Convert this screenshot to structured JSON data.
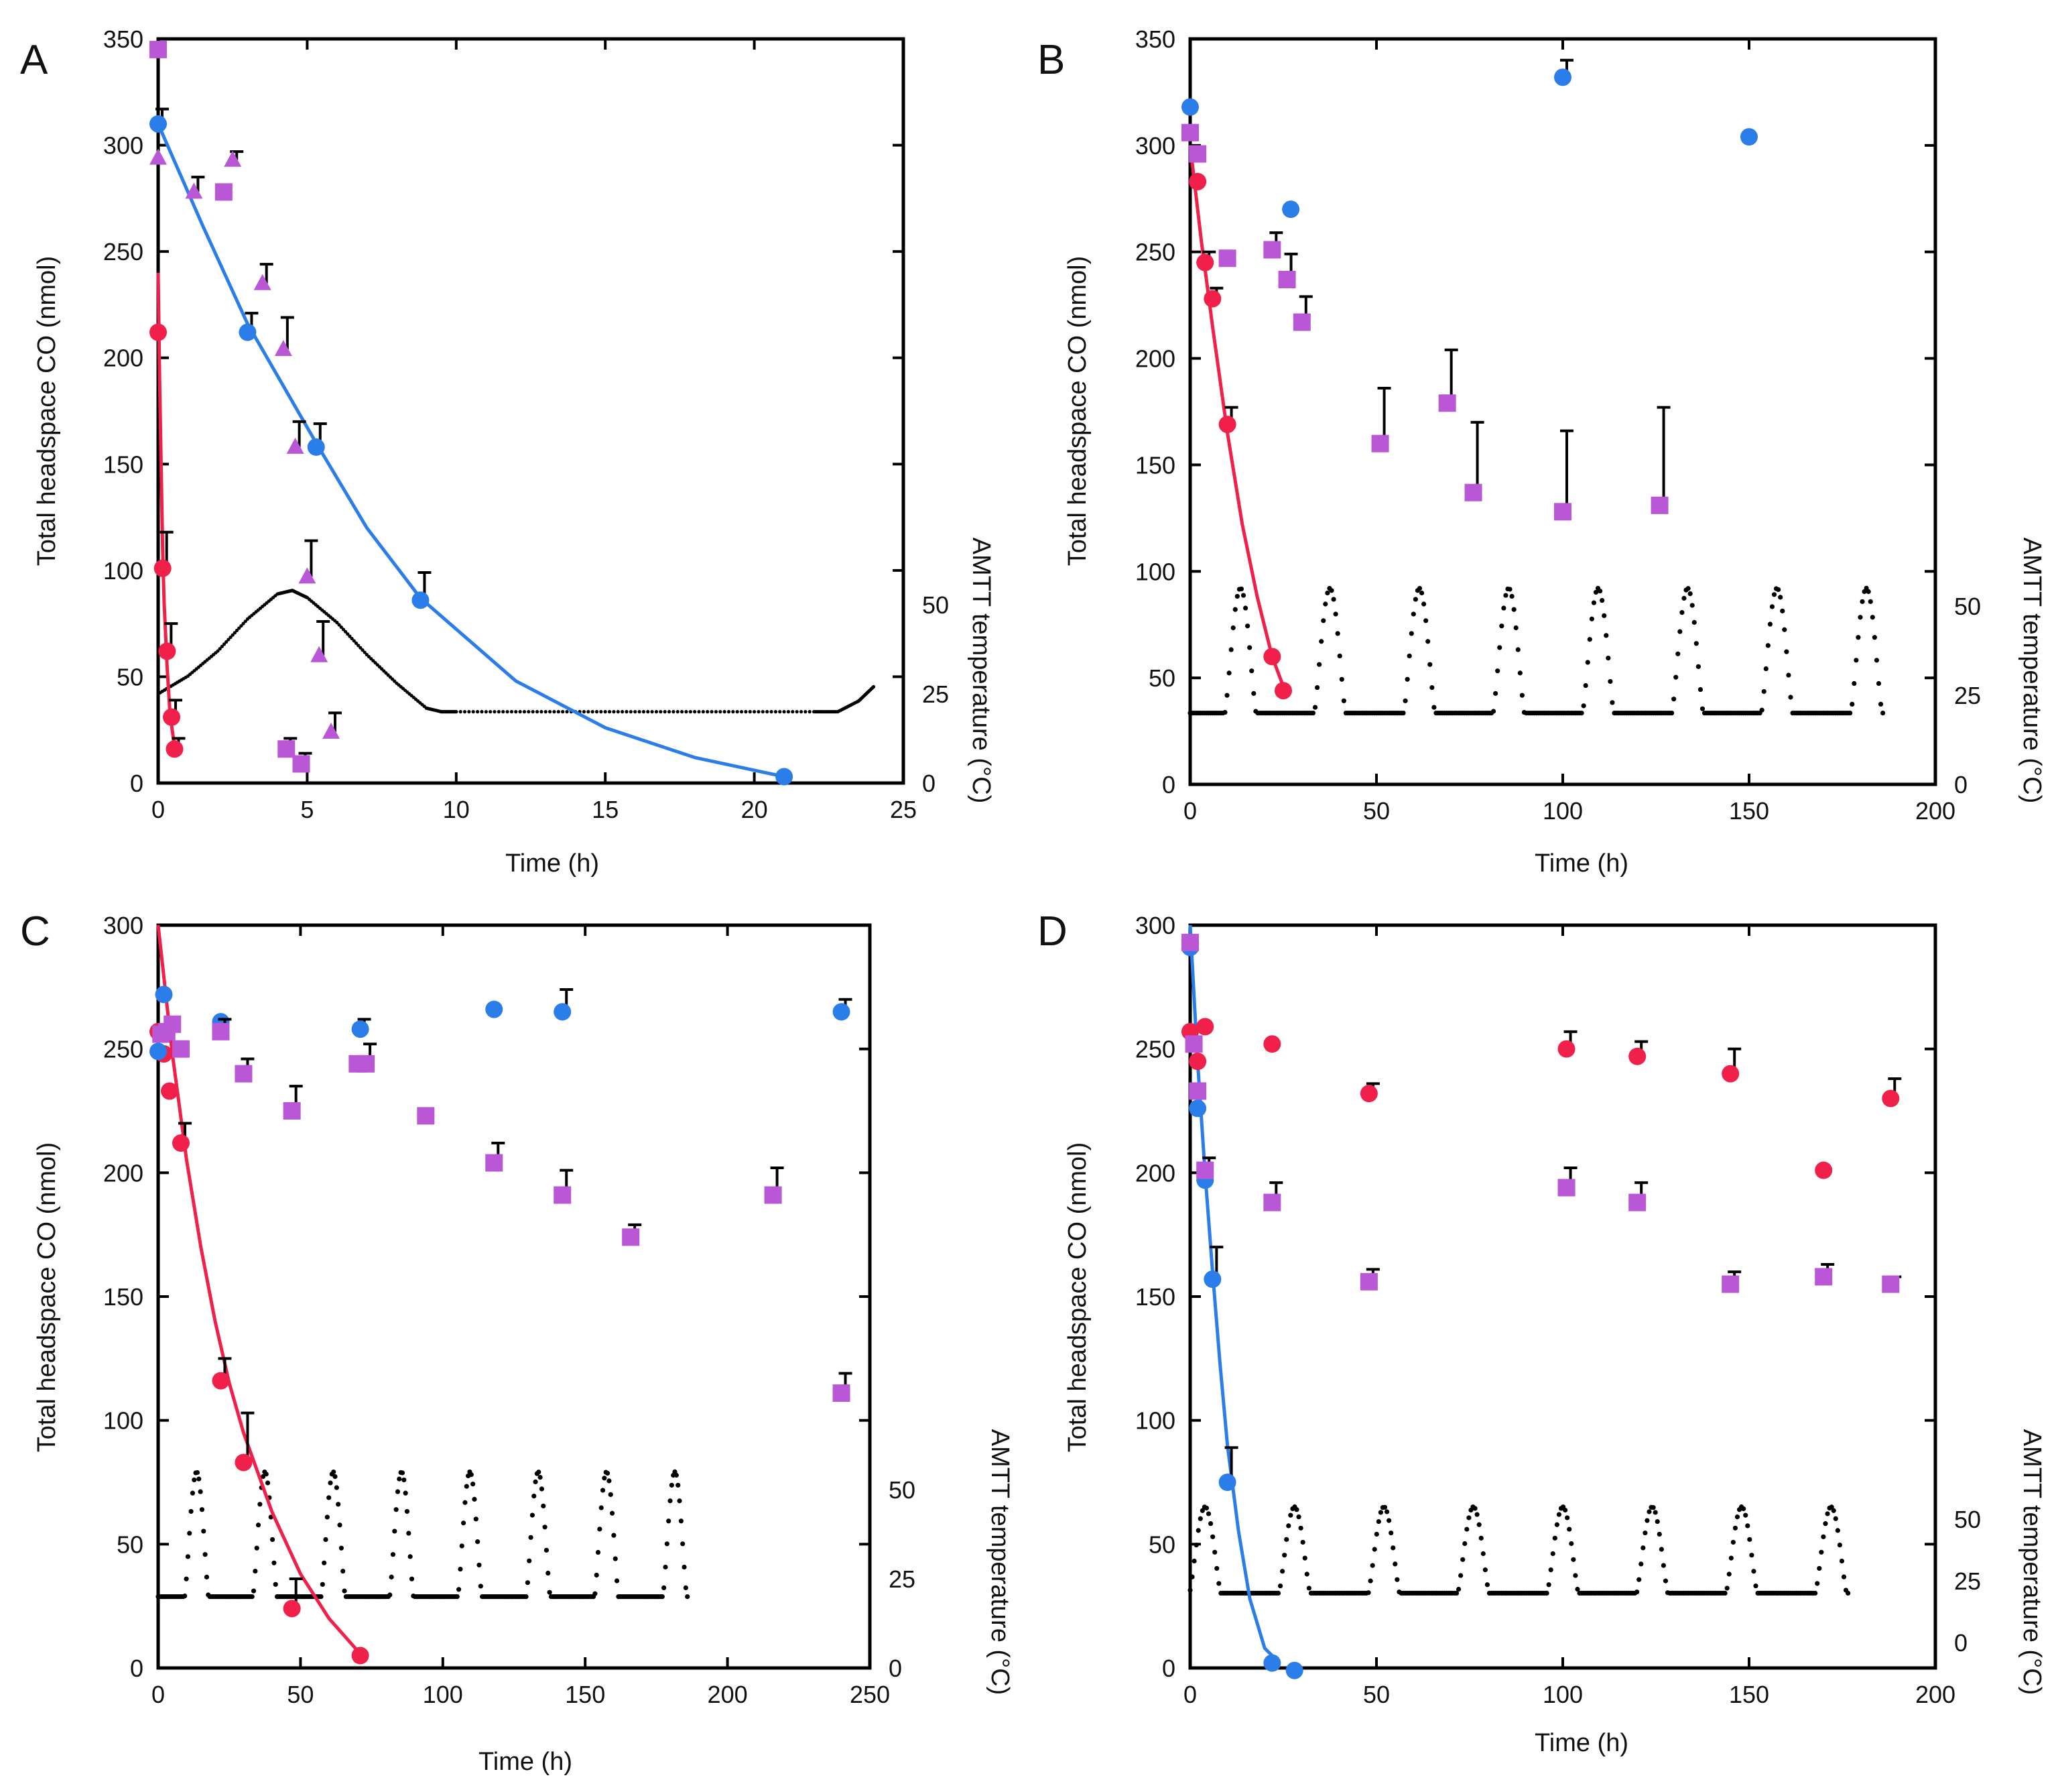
{
  "chart_data": [
    {
      "type": "scatter",
      "panel": "A",
      "xlabel": "Time (h)",
      "ylabel": "Total headspace CO (nmol)",
      "y2label": "AMTT temperature (°C)",
      "xlim": [
        0,
        25
      ],
      "ylim": [
        0,
        350
      ],
      "xticks": [
        0,
        5,
        10,
        15,
        20,
        25
      ],
      "yticks": [
        0,
        50,
        100,
        150,
        200,
        250,
        300,
        350
      ],
      "y2ticks": [
        0,
        25,
        50
      ],
      "series": [
        {
          "name": "red",
          "marker": "circle",
          "color": "#f0204a",
          "x": [
            0,
            0.15,
            0.3,
            0.45,
            0.55
          ],
          "y": [
            212,
            101,
            62,
            31,
            16
          ],
          "err": [
            0,
            17,
            13,
            8,
            5
          ]
        },
        {
          "name": "blue",
          "marker": "circle",
          "color": "#2b7de9",
          "x": [
            0,
            3,
            5.3,
            8.8,
            21
          ],
          "y": [
            310,
            212,
            158,
            86,
            3
          ],
          "err": [
            7,
            9,
            11,
            13,
            0
          ]
        },
        {
          "name": "purple squares",
          "marker": "square",
          "color": "#b957d6",
          "x": [
            0,
            2.2,
            4.3,
            4.8
          ],
          "y": [
            345,
            278,
            16,
            9
          ],
          "err": [
            0,
            0,
            5,
            5
          ]
        },
        {
          "name": "purple triangles",
          "marker": "triangle",
          "color": "#b957d6",
          "x": [
            0,
            1.2,
            2.5,
            3.5,
            4.2,
            4.6,
            5,
            5.4,
            5.8
          ],
          "y": [
            294,
            278,
            293,
            235,
            204,
            158,
            97,
            60,
            24
          ],
          "err": [
            0,
            7,
            4,
            9,
            15,
            12,
            17,
            16,
            9
          ]
        }
      ],
      "fits": [
        {
          "color": "#2b7de9",
          "x": [
            0,
            1.5,
            3,
            5.3,
            7,
            8.8,
            12,
            15,
            18,
            21
          ],
          "y": [
            310,
            262,
            216,
            160,
            120,
            87,
            48,
            26,
            12,
            3
          ]
        },
        {
          "color": "#f0204a",
          "x": [
            0,
            0.05,
            0.1,
            0.15,
            0.2,
            0.3,
            0.4,
            0.55
          ],
          "y": [
            240,
            190,
            150,
            110,
            85,
            55,
            32,
            17
          ]
        }
      ],
      "temperature": {
        "style": "dotted",
        "t": [
          0,
          1,
          2,
          3,
          4,
          4.5,
          5,
          6,
          7,
          8,
          9,
          9.5,
          10,
          12,
          14,
          16,
          18,
          20,
          22,
          22.8,
          23.5,
          24
        ],
        "temp": [
          25,
          30,
          37,
          46,
          53,
          54,
          52,
          45,
          36,
          28,
          21,
          20,
          20,
          20,
          20,
          20,
          20,
          20,
          20,
          20,
          23,
          27
        ]
      }
    },
    {
      "type": "scatter",
      "panel": "B",
      "xlabel": "Time (h)",
      "ylabel": "Total headspace CO (nmol)",
      "y2label": "AMTT temperature (°C)",
      "xlim": [
        0,
        200
      ],
      "ylim": [
        0,
        350
      ],
      "xticks": [
        0,
        50,
        100,
        150,
        200
      ],
      "yticks": [
        0,
        50,
        100,
        150,
        200,
        250,
        300,
        350
      ],
      "y2ticks": [
        0,
        25,
        50
      ],
      "series": [
        {
          "name": "red",
          "marker": "circle",
          "color": "#f0204a",
          "x": [
            2,
            4,
            6,
            10,
            22,
            25
          ],
          "y": [
            283,
            245,
            228,
            169,
            60,
            44
          ],
          "err": [
            0,
            5,
            5,
            8,
            0,
            0
          ]
        },
        {
          "name": "blue",
          "marker": "circle",
          "color": "#2b7de9",
          "x": [
            0,
            27,
            100,
            150
          ],
          "y": [
            318,
            270,
            332,
            304
          ],
          "err": [
            0,
            0,
            8,
            0
          ]
        },
        {
          "name": "purple",
          "marker": "square",
          "color": "#b957d6",
          "x": [
            0,
            2,
            10,
            22,
            26,
            30,
            51,
            69,
            76,
            100,
            126
          ],
          "y": [
            306,
            296,
            247,
            251,
            237,
            217,
            160,
            179,
            137,
            128,
            131
          ],
          "err": [
            0,
            0,
            0,
            8,
            12,
            12,
            26,
            25,
            33,
            38,
            46
          ]
        }
      ],
      "fits": [
        {
          "color": "#f0204a",
          "x": [
            0,
            3,
            6,
            10,
            14,
            18,
            22,
            25
          ],
          "y": [
            300,
            255,
            215,
            165,
            122,
            88,
            60,
            46
          ]
        }
      ],
      "temperature": {
        "style": "cycles",
        "start": 0,
        "end": 186,
        "period": 24,
        "first_peak": 13.5,
        "base": 20,
        "peak": 55
      }
    },
    {
      "type": "scatter",
      "panel": "C",
      "xlabel": "Time (h)",
      "ylabel": "Total headspace CO (nmol)",
      "y2label": "AMTT temperature (°C)",
      "xlim": [
        0,
        250
      ],
      "ylim": [
        0,
        300
      ],
      "xticks": [
        0,
        50,
        100,
        150,
        200,
        250
      ],
      "yticks": [
        0,
        50,
        100,
        150,
        200,
        250,
        300
      ],
      "y2ticks": [
        0,
        25,
        50
      ],
      "series": [
        {
          "name": "red",
          "marker": "circle",
          "color": "#f0204a",
          "x": [
            0,
            2,
            4,
            8,
            22,
            30,
            47,
            71
          ],
          "y": [
            257,
            248,
            233,
            212,
            116,
            83,
            24,
            5
          ],
          "err": [
            0,
            0,
            0,
            8,
            9,
            20,
            12,
            0
          ]
        },
        {
          "name": "blue",
          "marker": "circle",
          "color": "#2b7de9",
          "x": [
            0,
            2,
            22,
            71,
            118,
            142,
            240
          ],
          "y": [
            249,
            272,
            261,
            258,
            266,
            265,
            265
          ],
          "err": [
            0,
            0,
            0,
            4,
            0,
            9,
            5
          ]
        },
        {
          "name": "purple",
          "marker": "square",
          "color": "#b957d6",
          "x": [
            1,
            3,
            5,
            8,
            22,
            30,
            47,
            70,
            73,
            94,
            118,
            142,
            166,
            216,
            240
          ],
          "y": [
            256,
            257,
            260,
            250,
            257,
            240,
            225,
            244,
            244,
            223,
            204,
            191,
            174,
            191,
            111
          ],
          "err": [
            0,
            0,
            0,
            0,
            5,
            6,
            10,
            0,
            8,
            0,
            8,
            10,
            5,
            11,
            8
          ]
        }
      ],
      "fits": [
        {
          "color": "#f0204a",
          "x": [
            0,
            5,
            10,
            15,
            20,
            25,
            30,
            40,
            50,
            60,
            70
          ],
          "y": [
            300,
            248,
            205,
            170,
            140,
            115,
            95,
            63,
            38,
            20,
            7
          ]
        }
      ],
      "temperature": {
        "style": "cycles",
        "start": 0,
        "end": 186,
        "period": 24,
        "first_peak": 13.5,
        "base": 20,
        "peak": 55
      }
    },
    {
      "type": "scatter",
      "panel": "D",
      "xlabel": "Time (h)",
      "ylabel": "Total headspace CO (nmol)",
      "y2label": "AMTT temperature (°C)",
      "xlim": [
        0,
        200
      ],
      "ylim": [
        0,
        300
      ],
      "xticks": [
        0,
        50,
        100,
        150,
        200
      ],
      "yticks": [
        0,
        50,
        100,
        150,
        200,
        250,
        300
      ],
      "y2ticks": [
        0,
        25,
        50
      ],
      "series": [
        {
          "name": "red",
          "marker": "circle",
          "color": "#f0204a",
          "x": [
            0,
            2,
            4,
            22,
            48,
            101,
            120,
            145,
            170,
            188
          ],
          "y": [
            257,
            245,
            259,
            252,
            232,
            250,
            247,
            240,
            201,
            230
          ],
          "err": [
            0,
            0,
            0,
            0,
            4,
            7,
            6,
            10,
            0,
            8
          ]
        },
        {
          "name": "blue",
          "marker": "circle",
          "color": "#2b7de9",
          "x": [
            0,
            2,
            4,
            6,
            10,
            22,
            28
          ],
          "y": [
            291,
            226,
            197,
            157,
            75,
            2,
            -1
          ],
          "err": [
            0,
            0,
            9,
            13,
            14,
            0,
            0
          ]
        },
        {
          "name": "purple",
          "marker": "square",
          "color": "#b957d6",
          "x": [
            0,
            1,
            2,
            4,
            22,
            48,
            101,
            120,
            145,
            170,
            188
          ],
          "y": [
            293,
            252,
            233,
            201,
            188,
            156,
            194,
            188,
            155,
            158,
            155
          ],
          "err": [
            0,
            0,
            0,
            0,
            8,
            5,
            8,
            8,
            5,
            5,
            3
          ]
        }
      ],
      "fits": [
        {
          "color": "#2b7de9",
          "x": [
            0,
            2,
            4,
            6,
            8,
            10,
            13,
            16,
            20,
            24
          ],
          "y": [
            300,
            245,
            200,
            160,
            123,
            90,
            55,
            28,
            8,
            2
          ]
        }
      ],
      "temperature": {
        "style": "cycles",
        "start": 0,
        "end": 177,
        "period": 24,
        "first_peak": 4,
        "base": 20,
        "peak": 55
      }
    }
  ]
}
